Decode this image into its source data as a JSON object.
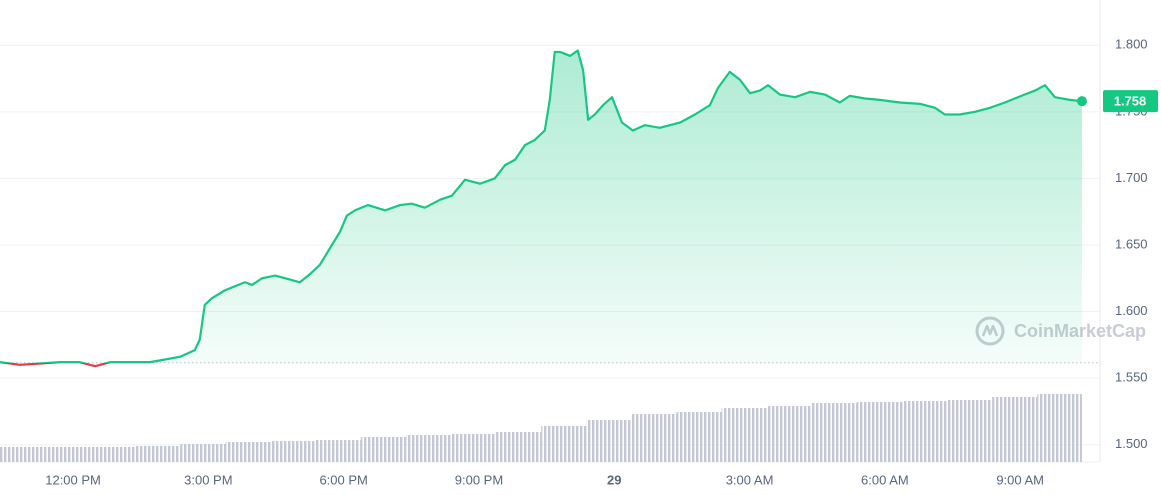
{
  "chart_data": {
    "type": "line",
    "watermark": "CoinMarketCap",
    "x": [
      10.38,
      10.82,
      11.27,
      11.71,
      12.15,
      12.49,
      12.82,
      13.26,
      13.71,
      14.04,
      14.37,
      14.7,
      14.81,
      14.92,
      15.08,
      15.37,
      15.59,
      15.81,
      15.97,
      16.19,
      16.48,
      16.81,
      17.03,
      17.25,
      17.47,
      17.74,
      17.92,
      18.07,
      18.25,
      18.54,
      18.92,
      19.25,
      19.51,
      19.8,
      20.14,
      20.4,
      20.69,
      21.02,
      21.35,
      21.58,
      21.8,
      22.02,
      22.24,
      22.46,
      22.57,
      22.68,
      22.8,
      23.02,
      23.19,
      23.31,
      23.42,
      23.57,
      23.75,
      23.95,
      24.17,
      24.41,
      24.68,
      25.01,
      25.46,
      25.79,
      26.12,
      26.3,
      26.56,
      26.79,
      27.01,
      27.23,
      27.41,
      27.67,
      28.01,
      28.34,
      28.67,
      29.0,
      29.22,
      29.56,
      29.89,
      30.33,
      30.78,
      31.11,
      31.33,
      31.66,
      32.0,
      32.33,
      32.66,
      32.88,
      33.1,
      33.33,
      33.55,
      33.77,
      34.1,
      34.37
    ],
    "series": [
      {
        "color": "#16c784",
        "below_color": "#ea3943",
        "values": [
          1.562,
          1.56,
          1.561,
          1.562,
          1.562,
          1.559,
          1.562,
          1.562,
          1.562,
          1.564,
          1.566,
          1.571,
          1.579,
          1.605,
          1.61,
          1.616,
          1.619,
          1.622,
          1.62,
          1.625,
          1.627,
          1.624,
          1.622,
          1.628,
          1.635,
          1.65,
          1.66,
          1.672,
          1.676,
          1.68,
          1.676,
          1.68,
          1.681,
          1.678,
          1.684,
          1.687,
          1.699,
          1.696,
          1.7,
          1.71,
          1.714,
          1.725,
          1.729,
          1.736,
          1.759,
          1.795,
          1.795,
          1.792,
          1.796,
          1.781,
          1.744,
          1.748,
          1.755,
          1.761,
          1.742,
          1.736,
          1.74,
          1.738,
          1.742,
          1.748,
          1.755,
          1.768,
          1.78,
          1.774,
          1.764,
          1.766,
          1.77,
          1.763,
          1.761,
          1.765,
          1.763,
          1.757,
          1.762,
          1.76,
          1.759,
          1.757,
          1.756,
          1.753,
          1.748,
          1.748,
          1.75,
          1.753,
          1.757,
          1.76,
          1.763,
          1.766,
          1.77,
          1.761,
          1.759,
          1.758
        ]
      }
    ],
    "baseline": 1.5615,
    "volume": {
      "color": "#c3c8d4",
      "axis": "y2",
      "x": [
        10.38,
        11.38,
        12.38,
        13.38,
        14.38,
        15.38,
        16.38,
        17.38,
        18.38,
        19.38,
        20.38,
        21.38,
        22.38,
        23.38,
        24.38,
        25.38,
        26.38,
        27.38,
        28.38,
        29.38,
        30.38,
        31.38,
        32.38,
        33.38
      ],
      "values": [
        15,
        15,
        15,
        16,
        18,
        20,
        21,
        22,
        25,
        27,
        28,
        30,
        36,
        42,
        48,
        50,
        54,
        56,
        59,
        60,
        61,
        62,
        65,
        68
      ]
    },
    "xlim": [
      10.38,
      34.77
    ],
    "xticks": [
      {
        "value": 12,
        "label": "12:00 PM"
      },
      {
        "value": 15,
        "label": "3:00 PM"
      },
      {
        "value": 18,
        "label": "6:00 PM"
      },
      {
        "value": 21,
        "label": "9:00 PM"
      },
      {
        "value": 24,
        "label": "29"
      },
      {
        "value": 27,
        "label": "3:00 AM"
      },
      {
        "value": 30,
        "label": "6:00 AM"
      },
      {
        "value": 33,
        "label": "9:00 AM"
      }
    ],
    "ylim": [
      1.487,
      1.834
    ],
    "yticks": [
      {
        "value": 1.5,
        "label": "1.500"
      },
      {
        "value": 1.55,
        "label": "1.550"
      },
      {
        "value": 1.6,
        "label": "1.600"
      },
      {
        "value": 1.65,
        "label": "1.650"
      },
      {
        "value": 1.7,
        "label": "1.700"
      },
      {
        "value": 1.75,
        "label": "1.750"
      },
      {
        "value": 1.8,
        "label": "1.800"
      }
    ],
    "y2lim": [
      0,
      462
    ],
    "grid": true
  }
}
